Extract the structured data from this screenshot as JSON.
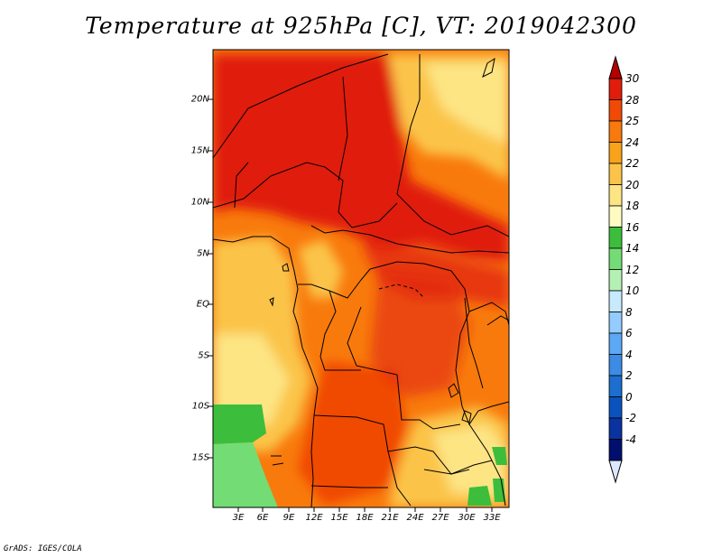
{
  "title": "Temperature at 925hPa [C], VT: 2019042300",
  "credit": "GrADS: IGES/COLA",
  "map": {
    "lat_ticks": [
      "20N",
      "15N",
      "10N",
      "5N",
      "EQ",
      "5S",
      "10S",
      "15S"
    ],
    "lon_ticks": [
      "3E",
      "6E",
      "9E",
      "12E",
      "15E",
      "18E",
      "21E",
      "24E",
      "27E",
      "30E",
      "33E"
    ]
  },
  "colorbar": {
    "labels": [
      "30",
      "28",
      "25",
      "24",
      "22",
      "20",
      "18",
      "16",
      "14",
      "12",
      "10",
      "8",
      "6",
      "4",
      "2",
      "0",
      "-2",
      "-4"
    ],
    "colors": [
      "#e01c0c",
      "#f04a06",
      "#f87a0c",
      "#f9a21c",
      "#fbc449",
      "#fde584",
      "#fdfbc1",
      "#3cbe3c",
      "#74dc74",
      "#b4f0b4",
      "#c7eaff",
      "#94ccff",
      "#5ca8f5",
      "#3c8ce6",
      "#1c6ecf",
      "#0a52be",
      "#0a32a0",
      "#000f6e"
    ],
    "over_color": "#b40000",
    "under_color": "#dde8ff"
  }
}
